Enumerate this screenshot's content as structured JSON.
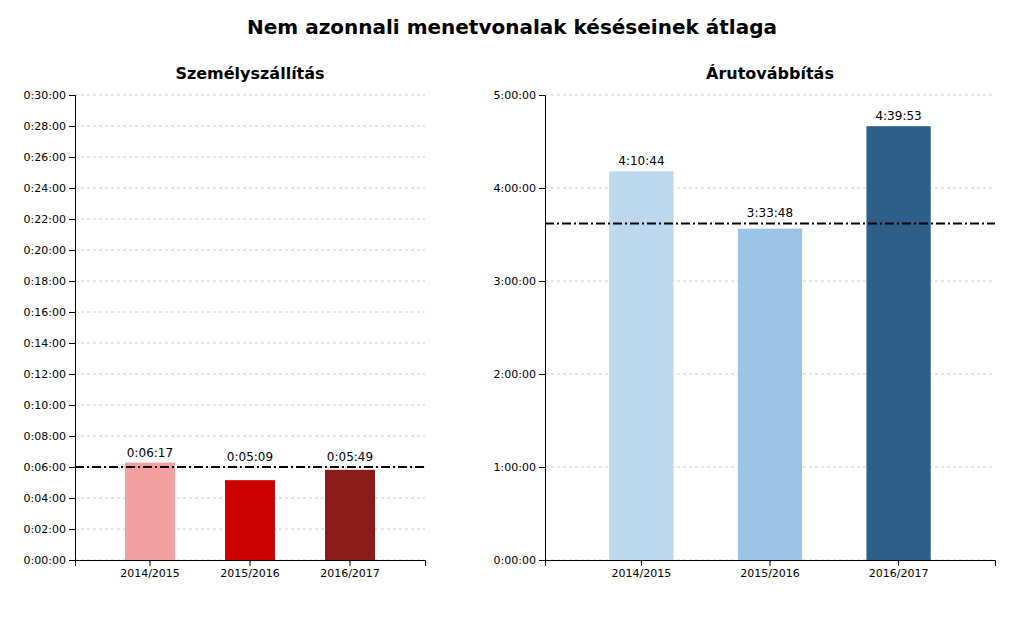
{
  "title": "Nem azonnali menetvonalak késéseinek átlaga",
  "chart_data": [
    {
      "type": "bar",
      "title": "Személyszállítás",
      "categories": [
        "2014/2015",
        "2015/2016",
        "2016/2017"
      ],
      "values": [
        377,
        309,
        349
      ],
      "value_labels": [
        "0:06:17",
        "0:05:09",
        "0:05:49"
      ],
      "colors": [
        "#F4A0A0",
        "#CC0000",
        "#8B1A1A"
      ],
      "reference_line": {
        "value": 360,
        "color": "#000000",
        "line_style": "dashdot"
      },
      "ylim": [
        0,
        1800
      ],
      "yticks": [
        {
          "value": 0,
          "label": "0:00:00"
        },
        {
          "value": 120,
          "label": "0:02:00"
        },
        {
          "value": 240,
          "label": "0:04:00"
        },
        {
          "value": 360,
          "label": "0:06:00"
        },
        {
          "value": 480,
          "label": "0:08:00"
        },
        {
          "value": 600,
          "label": "0:10:00"
        },
        {
          "value": 720,
          "label": "0:12:00"
        },
        {
          "value": 840,
          "label": "0:14:00"
        },
        {
          "value": 960,
          "label": "0:16:00"
        },
        {
          "value": 1080,
          "label": "0:18:00"
        },
        {
          "value": 1200,
          "label": "0:20:00"
        },
        {
          "value": 1320,
          "label": "0:22:00"
        },
        {
          "value": 1440,
          "label": "0:24:00"
        },
        {
          "value": 1560,
          "label": "0:26:00"
        },
        {
          "value": 1680,
          "label": "0:28:00"
        },
        {
          "value": 1800,
          "label": "0:30:00"
        }
      ],
      "grid": true,
      "data_labels": true
    },
    {
      "type": "bar",
      "title": "Árutovábbítás",
      "categories": [
        "2014/2015",
        "2015/2016",
        "2016/2017"
      ],
      "values": [
        15044,
        12828,
        16793
      ],
      "value_labels": [
        "4:10:44",
        "3:33:48",
        "4:39:53"
      ],
      "colors": [
        "#BDD7EE",
        "#9DC3E6",
        "#2E5F8A"
      ],
      "reference_line": {
        "value": 13028,
        "color": "#000000",
        "line_style": "dashdot"
      },
      "ylim": [
        0,
        18000
      ],
      "yticks": [
        {
          "value": 0,
          "label": "0:00:00"
        },
        {
          "value": 3600,
          "label": "1:00:00"
        },
        {
          "value": 7200,
          "label": "2:00:00"
        },
        {
          "value": 10800,
          "label": "3:00:00"
        },
        {
          "value": 14400,
          "label": "4:00:00"
        },
        {
          "value": 18000,
          "label": "5:00:00"
        }
      ],
      "grid": true,
      "data_labels": true
    }
  ]
}
